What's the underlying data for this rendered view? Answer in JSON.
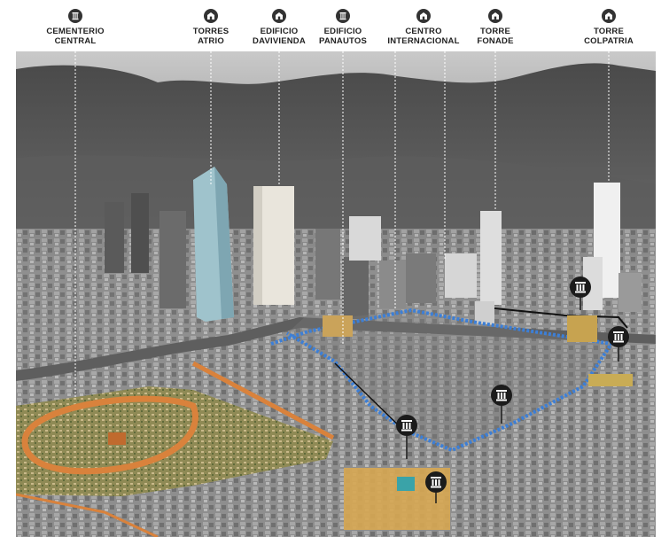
{
  "landmarks": [
    {
      "name": "cementerio-central",
      "line1": "CEMENTERIO",
      "line2": "CENTRAL",
      "icon": "column-icon"
    },
    {
      "name": "torres-atrio",
      "line1": "TORRES",
      "line2": "ATRIO",
      "icon": "building-icon"
    },
    {
      "name": "edificio-davivienda",
      "line1": "EDIFICIO",
      "line2": "DAVIVIENDA",
      "icon": "building-icon"
    },
    {
      "name": "edificio-panautos",
      "line1": "EDIFICIO",
      "line2": "PANAUTOS",
      "icon": "column-icon"
    },
    {
      "name": "centro-internacional",
      "line1": "CENTRO",
      "line2": "INTERNACIONAL",
      "icon": "building-icon"
    },
    {
      "name": "torre-fonade",
      "line1": "TORRE",
      "line2": "FONADE",
      "icon": "building-icon"
    },
    {
      "name": "torre-colpatria",
      "line1": "TORRE",
      "line2": "COLPATRIA",
      "icon": "building-icon"
    }
  ],
  "colors": {
    "boundary_blue": "#3d7fd6",
    "cemetery_orange": "#d9823c",
    "marker_dark": "#1b1b1b",
    "leader_line": "#ffffff"
  }
}
